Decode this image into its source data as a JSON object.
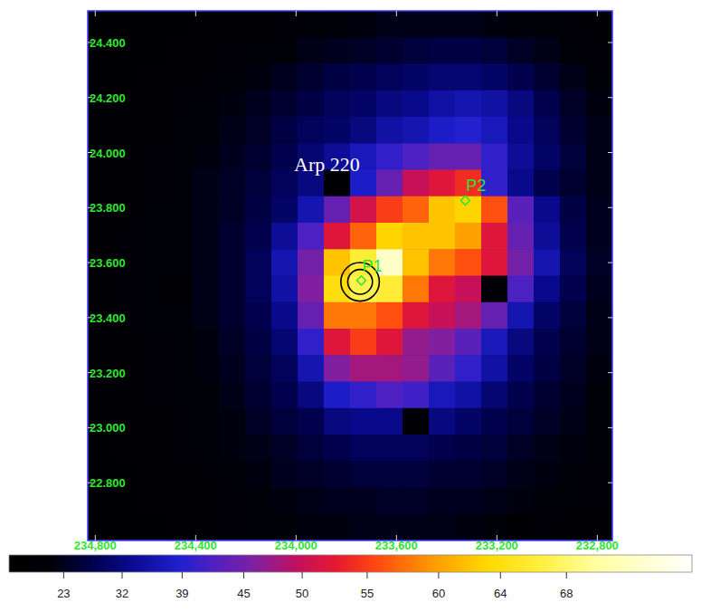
{
  "chart_data": {
    "type": "heatmap",
    "xlim": [
      234.83,
      232.74
    ],
    "ylim": [
      22.59,
      24.515
    ],
    "xticks": [
      {
        "value": 234.8,
        "label": "234,800"
      },
      {
        "value": 234.4,
        "label": "234,400"
      },
      {
        "value": 234.0,
        "label": "234,000"
      },
      {
        "value": 233.6,
        "label": "233,600"
      },
      {
        "value": 233.2,
        "label": "233,200"
      },
      {
        "value": 232.8,
        "label": "232,800"
      }
    ],
    "yticks": [
      {
        "value": 24.4,
        "label": "24.400"
      },
      {
        "value": 24.2,
        "label": "24.200"
      },
      {
        "value": 24.0,
        "label": "24.000"
      },
      {
        "value": 23.8,
        "label": "23.800"
      },
      {
        "value": 23.6,
        "label": "23.600"
      },
      {
        "value": 23.4,
        "label": "23.400"
      },
      {
        "value": 23.2,
        "label": "23.200"
      },
      {
        "value": 23.0,
        "label": "23.000"
      },
      {
        "value": 22.8,
        "label": "22.800"
      }
    ],
    "cells": [
      [
        14,
        14,
        15,
        15,
        16,
        16,
        17,
        18,
        19,
        20,
        21,
        22,
        22,
        22,
        22,
        21,
        20,
        19,
        18,
        17
      ],
      [
        14,
        15,
        15,
        16,
        17,
        18,
        19,
        20,
        22,
        23,
        24,
        25,
        26,
        27,
        27,
        26,
        24,
        22,
        20,
        18
      ],
      [
        15,
        15,
        16,
        17,
        18,
        19,
        21,
        23,
        25,
        27,
        28,
        29,
        30,
        31,
        31,
        30,
        28,
        25,
        22,
        20
      ],
      [
        15,
        16,
        17,
        18,
        19,
        21,
        23,
        25,
        27,
        29,
        30,
        32,
        33,
        35,
        36,
        35,
        32,
        28,
        24,
        21
      ],
      [
        16,
        16,
        17,
        19,
        20,
        22,
        24,
        27,
        29,
        30,
        32,
        35,
        36,
        38,
        39,
        37,
        33,
        29,
        25,
        22
      ],
      [
        16,
        17,
        18,
        19,
        21,
        23,
        25,
        28,
        31,
        34,
        37,
        40,
        42,
        44,
        44,
        40,
        34,
        30,
        26,
        22
      ],
      [
        16,
        17,
        18,
        20,
        22,
        24,
        26,
        29,
        32,
        15,
        38,
        44,
        50,
        52,
        54,
        40,
        33,
        28,
        25,
        22
      ],
      [
        17,
        17,
        19,
        20,
        22,
        24,
        27,
        30,
        36,
        44,
        51,
        55,
        57,
        62,
        63,
        56,
        43,
        33,
        27,
        23
      ],
      [
        17,
        18,
        19,
        20,
        22,
        25,
        28,
        34,
        42,
        52,
        57,
        63,
        62,
        62,
        60,
        52,
        44,
        34,
        28,
        23
      ],
      [
        17,
        18,
        19,
        20,
        22,
        25,
        29,
        36,
        45,
        62,
        66,
        72,
        62,
        58,
        56,
        52,
        45,
        36,
        29,
        24
      ],
      [
        17,
        18,
        19,
        16,
        22,
        25,
        29,
        35,
        46,
        64,
        67,
        66,
        58,
        52,
        50,
        18,
        42,
        33,
        28,
        23
      ],
      [
        17,
        18,
        19,
        20,
        22,
        25,
        28,
        33,
        44,
        58,
        58,
        56,
        52,
        50,
        48,
        44,
        36,
        30,
        26,
        22
      ],
      [
        17,
        17,
        18,
        20,
        21,
        24,
        27,
        31,
        40,
        52,
        55,
        52,
        47,
        46,
        43,
        37,
        32,
        28,
        25,
        22
      ],
      [
        16,
        17,
        18,
        19,
        21,
        23,
        26,
        29,
        36,
        46,
        48,
        48,
        47,
        43,
        40,
        35,
        30,
        27,
        24,
        21
      ],
      [
        16,
        17,
        18,
        19,
        20,
        22,
        25,
        28,
        32,
        38,
        40,
        42,
        41,
        37,
        35,
        31,
        28,
        25,
        23,
        20
      ],
      [
        16,
        16,
        17,
        18,
        20,
        21,
        24,
        26,
        28,
        32,
        33,
        33,
        16,
        32,
        30,
        28,
        26,
        24,
        22,
        20
      ],
      [
        15,
        16,
        17,
        18,
        19,
        21,
        22,
        24,
        26,
        28,
        29,
        29,
        29,
        28,
        27,
        26,
        24,
        22,
        21,
        19
      ],
      [
        15,
        15,
        16,
        17,
        18,
        20,
        21,
        23,
        24,
        25,
        26,
        26,
        26,
        25,
        25,
        24,
        22,
        21,
        20,
        18
      ],
      [
        14,
        15,
        16,
        17,
        17,
        18,
        20,
        21,
        22,
        23,
        23,
        24,
        24,
        23,
        23,
        22,
        21,
        20,
        19,
        18
      ],
      [
        14,
        14,
        15,
        16,
        17,
        18,
        19,
        20,
        21,
        21,
        22,
        22,
        22,
        22,
        21,
        20,
        13,
        18,
        17,
        16
      ]
    ],
    "colorbar": {
      "range": [
        2.5,
        75
      ],
      "ticks": [
        23,
        32,
        39,
        45,
        50,
        55,
        60,
        64,
        68
      ]
    },
    "points": [
      {
        "label": "P1",
        "x": 233.74,
        "y": 23.535
      },
      {
        "label": "P2",
        "x": 233.326,
        "y": 23.826
      }
    ],
    "circles": {
      "x": 233.745,
      "y": 23.53,
      "radii": [
        0.045,
        0.07
      ]
    },
    "annotations": [
      {
        "text": "Arp 220",
        "x": 233.877,
        "y": 23.931
      }
    ]
  }
}
